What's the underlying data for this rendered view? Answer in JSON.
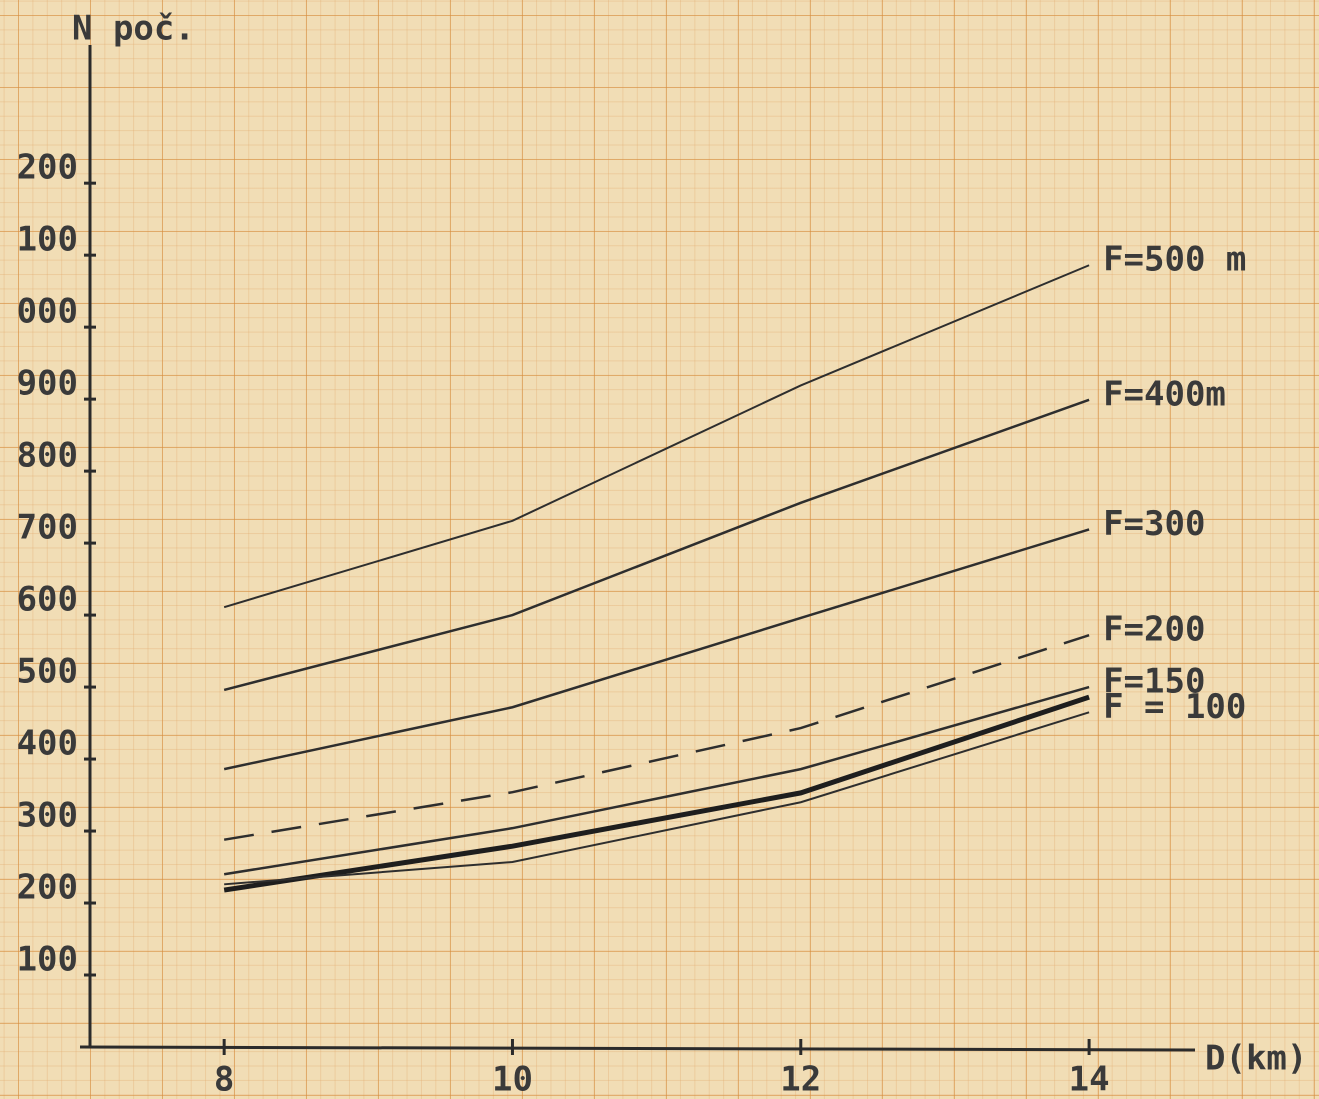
{
  "chart_data": {
    "type": "line",
    "x_label": "D(km)",
    "y_label": "N poč.",
    "xlim": [
      7,
      14.7
    ],
    "xticks": [
      8,
      10,
      12,
      14
    ],
    "ylim": [
      0,
      1385
    ],
    "yticks": [
      100,
      200,
      300,
      400,
      500,
      600,
      700,
      800,
      900,
      {
        "value": 1000,
        "label": "000"
      },
      {
        "value": 1100,
        "label": "100"
      },
      {
        "value": 1200,
        "label": "200"
      }
    ],
    "x": [
      8,
      10,
      12,
      14
    ],
    "series": [
      {
        "name": "F=500 m",
        "color": "#2e2e2e",
        "width": 2,
        "values": [
          611,
          731,
          919,
          1086
        ]
      },
      {
        "name": "F=400m",
        "color": "#2e2e2e",
        "width": 2.5,
        "values": [
          496,
          600,
          756,
          899
        ]
      },
      {
        "name": "F=300",
        "color": "#2e2e2e",
        "width": 2.5,
        "values": [
          386,
          472,
          596,
          719
        ]
      },
      {
        "name": "F=200",
        "color": "#2e2e2e",
        "width": 2.5,
        "dashed": true,
        "label_color": "#3a4f8c",
        "values": [
          288,
          354,
          443,
          572
        ]
      },
      {
        "name": "F=150",
        "color": "#2e2e2e",
        "width": 2.5,
        "values": [
          240,
          304,
          386,
          500
        ]
      },
      {
        "color": "#1e1e1e",
        "width": 5,
        "values": [
          218,
          279,
          353,
          486
        ]
      },
      {
        "name": "F = 100",
        "color": "#2e2e2e",
        "width": 2,
        "values": [
          226,
          257,
          340,
          465
        ]
      }
    ]
  }
}
